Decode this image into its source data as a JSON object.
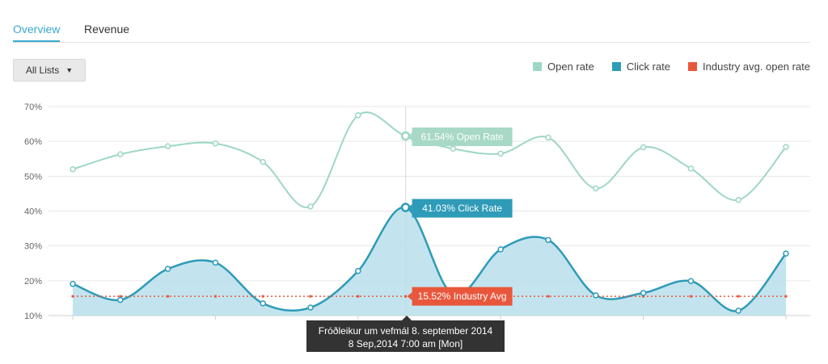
{
  "tabs": [
    {
      "label": "Overview",
      "active": true
    },
    {
      "label": "Revenue",
      "active": false
    }
  ],
  "list_selector": {
    "label": "All Lists",
    "icon": "chevron-down-icon"
  },
  "colors": {
    "open": "#9ed7c3",
    "click": "#2e9bb8",
    "click_fill": "#b8dfeb",
    "industry": "#e8573c",
    "grid": "#e6e6e6"
  },
  "chart_data": {
    "type": "line",
    "title": "",
    "xlabel": "",
    "ylabel": "",
    "yticks": [
      "10%",
      "20%",
      "30%",
      "40%",
      "50%",
      "60%",
      "70%"
    ],
    "ylim": [
      10,
      70
    ],
    "grid": true,
    "legend_position": "top-right",
    "series": [
      {
        "name": "Open rate",
        "values": [
          52.0,
          56.3,
          58.6,
          59.4,
          54.1,
          41.3,
          67.5,
          61.54,
          57.9,
          56.5,
          61.1,
          46.5,
          58.3,
          52.2,
          43.2,
          58.4
        ]
      },
      {
        "name": "Click rate",
        "values": [
          19.1,
          14.5,
          23.4,
          25.2,
          13.5,
          12.3,
          22.8,
          41.03,
          16.0,
          29.0,
          31.7,
          15.8,
          16.5,
          19.9,
          11.4,
          27.8
        ]
      },
      {
        "name": "Industry avg. open rate",
        "values": [
          15.52,
          15.52,
          15.52,
          15.52,
          15.52,
          15.52,
          15.52,
          15.52,
          15.52,
          15.52,
          15.52,
          15.52,
          15.52,
          15.52,
          15.52,
          15.52
        ]
      }
    ],
    "highlight_index": 7,
    "annotations": {
      "open": "61.54% Open Rate",
      "click": "41.03% Click Rate",
      "industry": "15.52% Industry Avg"
    },
    "tooltip": {
      "line1": "Fróðleikur um vefmál 8. september 2014",
      "line2": "8 Sep,2014 7:00 am [Mon]"
    }
  }
}
